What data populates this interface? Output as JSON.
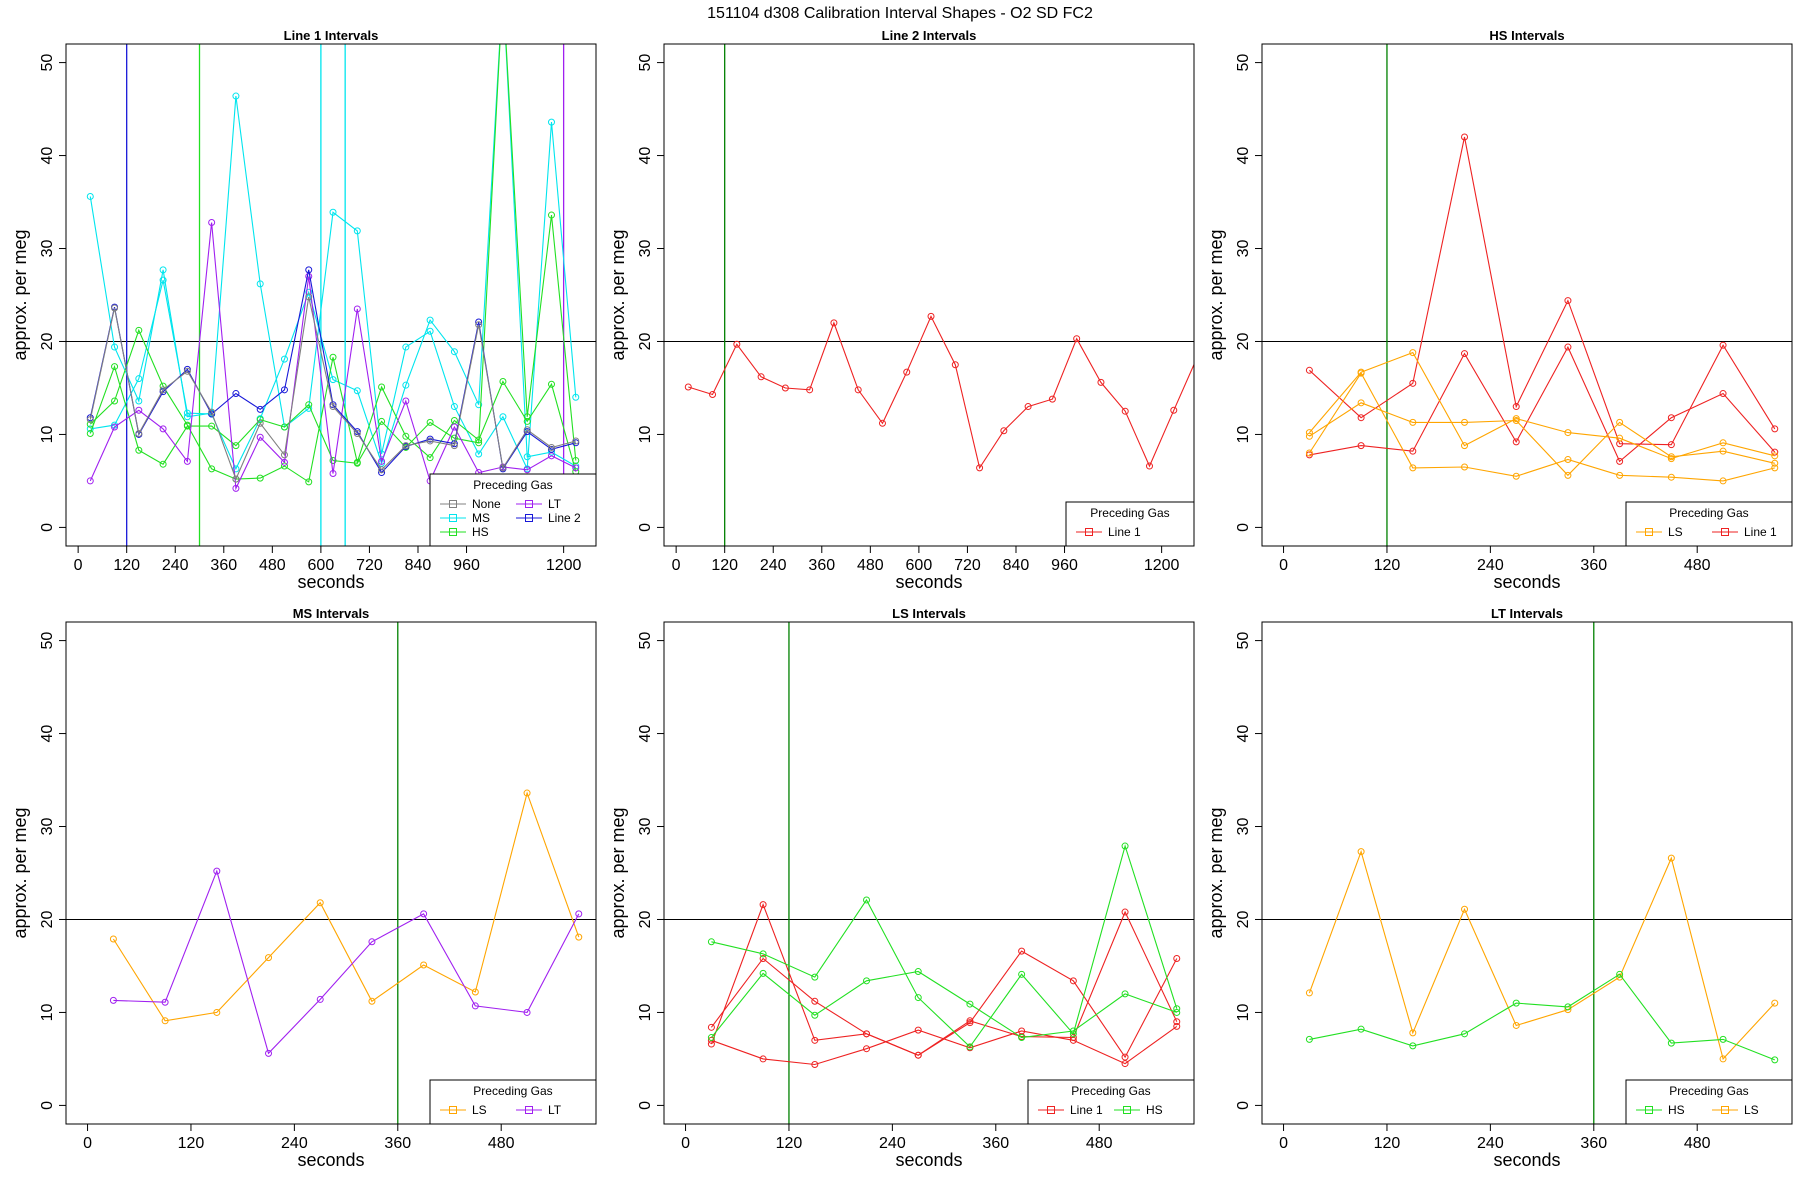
{
  "title": "151104   d308   Calibration Interval Shapes - O2 SD FC2",
  "colors": {
    "None": "#808080",
    "LT": "#a020f0",
    "MS": "#00e5ee",
    "Line 1": "#ee2222",
    "Line 2": "#1818d8",
    "HS": "#22e022",
    "LS": "#ffa500",
    "reference": "#000000",
    "cal_line": "#008000"
  },
  "chart_data": [
    {
      "type": "line",
      "title": "Line 1 Intervals",
      "xlabel": "seconds",
      "ylabel": "approx. per meg",
      "xlim": [
        -30,
        1280
      ],
      "ylim": [
        -2,
        52
      ],
      "xticks": [
        0,
        120,
        240,
        360,
        480,
        600,
        720,
        840,
        960,
        1200
      ],
      "yticks": [
        0,
        10,
        20,
        30,
        40,
        50
      ],
      "hline": 20,
      "vlines": [
        {
          "x": 120,
          "color": "Line 2"
        },
        {
          "x": 300,
          "color": "HS"
        },
        {
          "x": 600,
          "color": "MS"
        },
        {
          "x": 660,
          "color": "MS"
        },
        {
          "x": 1200,
          "color": "LT"
        }
      ],
      "legend": {
        "title": "Preceding Gas",
        "entries": [
          "None",
          "LT",
          "MS",
          "Line 2",
          "HS"
        ],
        "position": "bottom-right",
        "cols": 2
      },
      "series": [
        {
          "name": "MS",
          "x": [
            30,
            90,
            150,
            210,
            270,
            330,
            390,
            450,
            510,
            570,
            630,
            690,
            750,
            810,
            870,
            930,
            990,
            1050,
            1110,
            1170,
            1230
          ],
          "values": [
            35.6,
            19.4,
            13.6,
            27.7,
            11.9,
            12.3,
            46.4,
            26.2,
            10.8,
            12.8,
            33.9,
            31.9,
            7.9,
            19.4,
            21.1,
            13.0,
            7.9,
            11.9,
            6.3,
            43.6,
            14.0
          ]
        },
        {
          "name": "MS",
          "x": [
            30,
            90,
            150,
            210,
            270,
            330,
            390,
            450,
            510,
            570,
            630,
            690,
            750,
            810,
            870,
            930,
            990,
            1050,
            1110,
            1170,
            1230
          ],
          "values": [
            10.6,
            11.0,
            16.0,
            26.6,
            12.3,
            12.2,
            6.3,
            11.7,
            18.1,
            25.3,
            15.9,
            14.7,
            6.9,
            15.3,
            22.3,
            18.9,
            13.2,
            58.0,
            7.6,
            8.1,
            6.6
          ]
        },
        {
          "name": "HS",
          "x": [
            30,
            90,
            150,
            210,
            270,
            330,
            390,
            450,
            510,
            570,
            630,
            690,
            750,
            810,
            870,
            930,
            990,
            1050,
            1110,
            1170,
            1230
          ],
          "values": [
            11.1,
            13.6,
            21.2,
            15.2,
            11.0,
            6.3,
            5.2,
            5.3,
            6.6,
            4.9,
            18.3,
            7.0,
            15.1,
            9.8,
            7.5,
            11.5,
            9.4,
            15.7,
            11.4,
            15.4,
            6.0
          ]
        },
        {
          "name": "HS",
          "x": [
            30,
            90,
            150,
            210,
            270,
            330,
            390,
            450,
            510,
            570,
            630,
            690,
            750,
            810,
            870,
            930,
            990,
            1050,
            1110,
            1170,
            1230
          ],
          "values": [
            10.1,
            17.3,
            8.3,
            6.8,
            10.9,
            10.9,
            8.8,
            11.6,
            10.8,
            13.2,
            7.2,
            6.9,
            11.4,
            8.6,
            11.3,
            9.6,
            9.1,
            58.0,
            11.9,
            33.6,
            7.2
          ]
        },
        {
          "name": "LT",
          "x": [
            30,
            90,
            150,
            210,
            270,
            330,
            390,
            450,
            510,
            570,
            630,
            690,
            750,
            810,
            870,
            930,
            990,
            1050,
            1110,
            1170,
            1230
          ],
          "values": [
            5.0,
            10.8,
            12.6,
            10.6,
            7.1,
            32.8,
            4.2,
            9.7,
            7.0,
            27.0,
            5.8,
            23.5,
            7.1,
            13.6,
            5.0,
            10.8,
            5.9,
            6.5,
            6.2,
            7.7,
            6.4
          ]
        },
        {
          "name": "Line 2",
          "x": [
            30,
            90,
            150,
            210,
            270,
            330,
            390,
            450,
            510,
            570,
            630,
            690,
            750,
            810,
            870,
            930,
            990,
            1050,
            1110,
            1170,
            1230
          ],
          "values": [
            11.8,
            23.7,
            10.0,
            14.6,
            17.0,
            12.2,
            14.4,
            12.7,
            14.8,
            27.7,
            13.2,
            10.3,
            5.9,
            8.7,
            9.5,
            9.0,
            22.1,
            6.3,
            10.3,
            8.4,
            9.1
          ]
        },
        {
          "name": "None",
          "x": [
            30,
            90,
            150,
            210,
            270,
            330,
            390,
            450,
            510,
            570,
            630,
            690,
            750,
            810,
            870,
            930,
            990,
            1050,
            1110,
            1170,
            1230
          ],
          "values": [
            11.6,
            23.6,
            10.1,
            14.8,
            16.8,
            12.4,
            5.2,
            11.2,
            7.8,
            24.8,
            13.0,
            10.1,
            6.2,
            8.8,
            9.3,
            8.8,
            21.8,
            6.4,
            10.5,
            8.6,
            9.3
          ]
        }
      ]
    },
    {
      "type": "line",
      "title": "Line 2 Intervals",
      "xlabel": "seconds",
      "ylabel": "approx. per meg",
      "xlim": [
        -30,
        1280
      ],
      "ylim": [
        -2,
        52
      ],
      "xticks": [
        0,
        120,
        240,
        360,
        480,
        600,
        720,
        840,
        960,
        1200
      ],
      "yticks": [
        0,
        10,
        20,
        30,
        40,
        50
      ],
      "hline": 20,
      "vlines": [
        {
          "x": 120,
          "color": "cal_line"
        }
      ],
      "legend": {
        "title": "Preceding Gas",
        "entries": [
          "Line 1"
        ],
        "position": "bottom-right",
        "cols": 1
      },
      "series": [
        {
          "name": "Line 1",
          "x": [
            30,
            90,
            150,
            210,
            270,
            330,
            390,
            450,
            510,
            570,
            630,
            690,
            750,
            810,
            870,
            930,
            990,
            1050,
            1110,
            1170,
            1230,
            1290
          ],
          "values": [
            15.1,
            14.3,
            19.7,
            16.2,
            15.0,
            14.8,
            22.0,
            14.8,
            11.2,
            16.7,
            22.7,
            17.5,
            6.4,
            10.4,
            13.0,
            13.8,
            20.3,
            15.6,
            12.5,
            6.6,
            12.6,
            18.5
          ]
        }
      ]
    },
    {
      "type": "line",
      "title": "HS Intervals",
      "xlabel": "seconds",
      "ylabel": "approx. per meg",
      "xlim": [
        -25,
        590
      ],
      "ylim": [
        -2,
        52
      ],
      "xticks": [
        0,
        120,
        240,
        360,
        480
      ],
      "yticks": [
        0,
        10,
        20,
        30,
        40,
        50
      ],
      "hline": 20,
      "vlines": [
        {
          "x": 120,
          "color": "cal_line"
        }
      ],
      "legend": {
        "title": "Preceding Gas",
        "entries": [
          "LS",
          "Line 1"
        ],
        "position": "bottom-right",
        "cols": 2
      },
      "series": [
        {
          "name": "Line 1",
          "x": [
            30,
            90,
            150,
            210,
            270,
            330,
            390,
            450,
            510,
            570
          ],
          "values": [
            16.9,
            11.8,
            15.5,
            42.0,
            13.0,
            24.4,
            9.0,
            8.9,
            19.6,
            10.6
          ]
        },
        {
          "name": "Line 1",
          "x": [
            30,
            90,
            150,
            210,
            270,
            330,
            390,
            450,
            510,
            570
          ],
          "values": [
            7.8,
            8.8,
            8.2,
            18.7,
            9.2,
            19.4,
            7.1,
            11.8,
            14.4,
            8.1
          ]
        },
        {
          "name": "LS",
          "x": [
            30,
            90,
            150,
            210,
            270,
            330,
            390,
            450,
            510,
            570
          ],
          "values": [
            10.2,
            16.7,
            18.8,
            8.8,
            11.7,
            10.2,
            9.6,
            7.4,
            9.1,
            7.7
          ]
        },
        {
          "name": "LS",
          "x": [
            30,
            90,
            150,
            210,
            270,
            330,
            390,
            450,
            510,
            570
          ],
          "values": [
            9.8,
            13.4,
            11.3,
            11.3,
            11.5,
            5.6,
            11.3,
            7.6,
            8.2,
            6.9
          ]
        },
        {
          "name": "LS",
          "x": [
            30,
            90,
            150,
            210,
            270,
            330,
            390,
            450,
            510,
            570
          ],
          "values": [
            8.0,
            16.6,
            6.4,
            6.5,
            5.5,
            7.3,
            5.6,
            5.4,
            5.0,
            6.4
          ]
        }
      ]
    },
    {
      "type": "line",
      "title": "MS Intervals",
      "xlabel": "seconds",
      "ylabel": "approx. per meg",
      "xlim": [
        -25,
        590
      ],
      "ylim": [
        -2,
        52
      ],
      "xticks": [
        0,
        120,
        240,
        360,
        480
      ],
      "yticks": [
        0,
        10,
        20,
        30,
        40,
        50
      ],
      "hline": 20,
      "vlines": [
        {
          "x": 360,
          "color": "cal_line"
        }
      ],
      "legend": {
        "title": "Preceding Gas",
        "entries": [
          "LS",
          "LT"
        ],
        "position": "bottom-right",
        "cols": 2
      },
      "series": [
        {
          "name": "LS",
          "x": [
            30,
            90,
            150,
            210,
            270,
            330,
            390,
            450,
            510,
            570
          ],
          "values": [
            17.9,
            9.1,
            10.0,
            15.9,
            21.8,
            11.2,
            15.1,
            12.2,
            33.6,
            18.1
          ]
        },
        {
          "name": "LT",
          "x": [
            30,
            90,
            150,
            210,
            270,
            330,
            390,
            450,
            510,
            570
          ],
          "values": [
            11.3,
            11.1,
            25.2,
            5.6,
            11.4,
            17.6,
            20.6,
            10.7,
            10.0,
            20.6
          ]
        }
      ]
    },
    {
      "type": "line",
      "title": "LS Intervals",
      "xlabel": "seconds",
      "ylabel": "approx. per meg",
      "xlim": [
        -25,
        590
      ],
      "ylim": [
        -2,
        52
      ],
      "xticks": [
        0,
        120,
        240,
        360,
        480
      ],
      "yticks": [
        0,
        10,
        20,
        30,
        40,
        50
      ],
      "hline": 20,
      "vlines": [
        {
          "x": 120,
          "color": "cal_line"
        }
      ],
      "legend": {
        "title": "Preceding Gas",
        "entries": [
          "Line 1",
          "HS"
        ],
        "position": "bottom-right",
        "cols": 2
      },
      "series": [
        {
          "name": "Line 1",
          "x": [
            30,
            90,
            150,
            210,
            270,
            330,
            390,
            450,
            510,
            570
          ],
          "values": [
            6.6,
            21.6,
            7.0,
            7.7,
            5.4,
            8.9,
            16.6,
            13.4,
            5.2,
            15.8
          ]
        },
        {
          "name": "Line 1",
          "x": [
            30,
            90,
            150,
            210,
            270,
            330,
            390,
            450,
            510,
            570
          ],
          "values": [
            8.4,
            15.8,
            11.2,
            7.7,
            5.4,
            9.1,
            7.4,
            7.3,
            20.8,
            9.0
          ]
        },
        {
          "name": "Line 1",
          "x": [
            30,
            90,
            150,
            210,
            270,
            330,
            390,
            450,
            510,
            570
          ],
          "values": [
            7.0,
            5.0,
            4.4,
            6.1,
            8.1,
            6.2,
            8.0,
            7.0,
            4.5,
            8.5
          ]
        },
        {
          "name": "HS",
          "x": [
            30,
            90,
            150,
            210,
            270,
            330,
            390,
            450,
            510,
            570
          ],
          "values": [
            17.6,
            16.3,
            13.8,
            22.1,
            11.6,
            6.3,
            14.1,
            7.7,
            27.9,
            10.4
          ]
        },
        {
          "name": "HS",
          "x": [
            30,
            90,
            150,
            210,
            270,
            330,
            390,
            450,
            510,
            570
          ],
          "values": [
            7.3,
            14.2,
            9.7,
            13.4,
            14.4,
            10.9,
            7.3,
            8.0,
            12.0,
            10.0
          ]
        }
      ]
    },
    {
      "type": "line",
      "title": "LT Intervals",
      "xlabel": "seconds",
      "ylabel": "approx. per meg",
      "xlim": [
        -25,
        590
      ],
      "ylim": [
        -2,
        52
      ],
      "xticks": [
        0,
        120,
        240,
        360,
        480
      ],
      "yticks": [
        0,
        10,
        20,
        30,
        40,
        50
      ],
      "hline": 20,
      "vlines": [
        {
          "x": 360,
          "color": "cal_line"
        }
      ],
      "legend": {
        "title": "Preceding Gas",
        "entries": [
          "HS",
          "LS"
        ],
        "position": "bottom-right",
        "cols": 2
      },
      "series": [
        {
          "name": "LS",
          "x": [
            30,
            90,
            150,
            210,
            270,
            330,
            390,
            450,
            510,
            570
          ],
          "values": [
            12.1,
            27.3,
            7.8,
            21.1,
            8.6,
            10.3,
            13.8,
            26.6,
            5.0,
            11.0
          ]
        },
        {
          "name": "HS",
          "x": [
            30,
            90,
            150,
            210,
            270,
            330,
            390,
            450,
            510,
            570
          ],
          "values": [
            7.1,
            8.2,
            6.4,
            7.7,
            11.0,
            10.6,
            14.1,
            6.7,
            7.1,
            4.9
          ]
        }
      ]
    }
  ]
}
